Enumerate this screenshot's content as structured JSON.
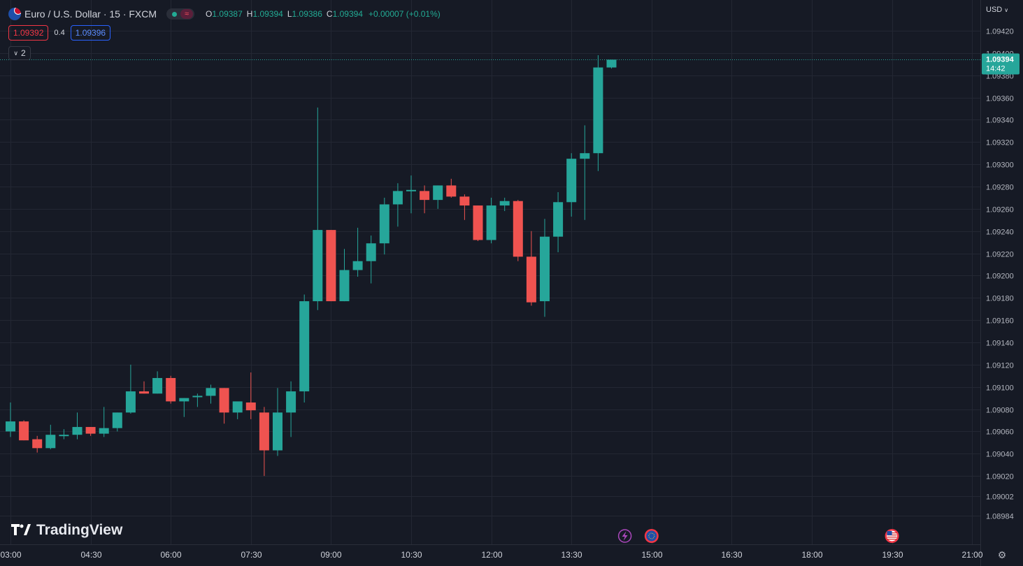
{
  "header": {
    "symbol": "Euro / U.S. Dollar · 15 · FXCM",
    "ohlc": {
      "o_label": "O",
      "o": "1.09387",
      "h_label": "H",
      "h": "1.09394",
      "l_label": "L",
      "l": "1.09386",
      "c_label": "C",
      "c": "1.09394",
      "change": "+0.00007 (+0.01%)"
    },
    "market_status": "open",
    "icons": {
      "flag": "eur-usd-flag-icon",
      "status": "market-open-dot-icon",
      "wave": "wave-icon"
    }
  },
  "quotes": {
    "sell": "1.09392",
    "spread": "0.4",
    "buy": "1.09396"
  },
  "indicators_toggle": {
    "count": "2"
  },
  "price_axis": {
    "currency": "USD"
  },
  "last_price": {
    "price": "1.09394",
    "countdown": "14:42",
    "color": "#26a69a"
  },
  "branding": {
    "name": "TradingView"
  },
  "events": [
    {
      "time": "14:30",
      "icon": "lightning-event-icon"
    },
    {
      "time": "15:00",
      "icon": "eu-flag-event-icon"
    },
    {
      "time": "19:30",
      "icon": "us-flag-event-icon"
    }
  ],
  "colors": {
    "background": "#161a25",
    "up": "#26a69a",
    "down": "#ef5350",
    "grid": "#232733",
    "axis_text": "#b2b5be"
  },
  "chart_data": {
    "type": "candlestick",
    "interval": "15",
    "x_ticks": [
      "03:00",
      "04:30",
      "06:00",
      "07:30",
      "09:00",
      "10:30",
      "12:00",
      "13:30",
      "15:00",
      "16:30",
      "18:00",
      "19:30",
      "21:00"
    ],
    "y_ticks": [
      "1.09420",
      "1.09400",
      "1.09380",
      "1.09360",
      "1.09340",
      "1.09320",
      "1.09300",
      "1.09280",
      "1.09260",
      "1.09240",
      "1.09220",
      "1.09200",
      "1.09180",
      "1.09160",
      "1.09140",
      "1.09120",
      "1.09100",
      "1.09080",
      "1.09060",
      "1.09040",
      "1.09020",
      "1.09002",
      "1.08984"
    ],
    "ylim": [
      1.08984,
      1.0943
    ],
    "candles": [
      {
        "time": "03:00",
        "o": 1.0906,
        "h": 1.09086,
        "l": 1.09055,
        "c": 1.09069
      },
      {
        "time": "03:15",
        "o": 1.09069,
        "h": 1.0907,
        "l": 1.09052,
        "c": 1.09052
      },
      {
        "time": "03:30",
        "o": 1.09053,
        "h": 1.09056,
        "l": 1.09041,
        "c": 1.09045
      },
      {
        "time": "03:45",
        "o": 1.09045,
        "h": 1.09066,
        "l": 1.09044,
        "c": 1.09057
      },
      {
        "time": "04:00",
        "o": 1.09057,
        "h": 1.09062,
        "l": 1.09053,
        "c": 1.09057
      },
      {
        "time": "04:15",
        "o": 1.09057,
        "h": 1.09077,
        "l": 1.09053,
        "c": 1.09064
      },
      {
        "time": "04:30",
        "o": 1.09064,
        "h": 1.09064,
        "l": 1.09056,
        "c": 1.09058
      },
      {
        "time": "04:45",
        "o": 1.09058,
        "h": 1.09082,
        "l": 1.09055,
        "c": 1.09063
      },
      {
        "time": "05:00",
        "o": 1.09063,
        "h": 1.09077,
        "l": 1.0906,
        "c": 1.09077
      },
      {
        "time": "05:15",
        "o": 1.09077,
        "h": 1.0912,
        "l": 1.09076,
        "c": 1.09096
      },
      {
        "time": "05:30",
        "o": 1.09096,
        "h": 1.09105,
        "l": 1.09094,
        "c": 1.09094
      },
      {
        "time": "05:45",
        "o": 1.09094,
        "h": 1.09114,
        "l": 1.09094,
        "c": 1.09108
      },
      {
        "time": "06:00",
        "o": 1.09108,
        "h": 1.0911,
        "l": 1.09085,
        "c": 1.09087
      },
      {
        "time": "06:15",
        "o": 1.09087,
        "h": 1.0909,
        "l": 1.09073,
        "c": 1.0909
      },
      {
        "time": "06:30",
        "o": 1.09091,
        "h": 1.09094,
        "l": 1.09082,
        "c": 1.09092
      },
      {
        "time": "06:45",
        "o": 1.09092,
        "h": 1.09102,
        "l": 1.09085,
        "c": 1.09099
      },
      {
        "time": "07:00",
        "o": 1.09099,
        "h": 1.09099,
        "l": 1.09067,
        "c": 1.09077
      },
      {
        "time": "07:15",
        "o": 1.09077,
        "h": 1.09085,
        "l": 1.09071,
        "c": 1.09087
      },
      {
        "time": "07:30",
        "o": 1.09086,
        "h": 1.09113,
        "l": 1.09071,
        "c": 1.09079
      },
      {
        "time": "07:45",
        "o": 1.09077,
        "h": 1.09082,
        "l": 1.0902,
        "c": 1.09043
      },
      {
        "time": "08:00",
        "o": 1.09043,
        "h": 1.09099,
        "l": 1.09038,
        "c": 1.09077
      },
      {
        "time": "08:15",
        "o": 1.09077,
        "h": 1.09105,
        "l": 1.09055,
        "c": 1.09096
      },
      {
        "time": "08:30",
        "o": 1.09096,
        "h": 1.09183,
        "l": 1.09086,
        "c": 1.09177
      },
      {
        "time": "08:45",
        "o": 1.09177,
        "h": 1.09351,
        "l": 1.09169,
        "c": 1.09241
      },
      {
        "time": "09:00",
        "o": 1.09241,
        "h": 1.09241,
        "l": 1.09177,
        "c": 1.09177
      },
      {
        "time": "09:15",
        "o": 1.09177,
        "h": 1.09224,
        "l": 1.09177,
        "c": 1.09205
      },
      {
        "time": "09:30",
        "o": 1.09205,
        "h": 1.09243,
        "l": 1.09199,
        "c": 1.09213
      },
      {
        "time": "09:45",
        "o": 1.09213,
        "h": 1.09236,
        "l": 1.09193,
        "c": 1.09229
      },
      {
        "time": "10:00",
        "o": 1.09229,
        "h": 1.0927,
        "l": 1.09219,
        "c": 1.09264
      },
      {
        "time": "10:15",
        "o": 1.09264,
        "h": 1.09283,
        "l": 1.09244,
        "c": 1.09276
      },
      {
        "time": "10:30",
        "o": 1.09276,
        "h": 1.0929,
        "l": 1.09256,
        "c": 1.09277
      },
      {
        "time": "10:45",
        "o": 1.09276,
        "h": 1.09281,
        "l": 1.09256,
        "c": 1.09268
      },
      {
        "time": "11:00",
        "o": 1.09268,
        "h": 1.09281,
        "l": 1.0926,
        "c": 1.09281
      },
      {
        "time": "11:15",
        "o": 1.09281,
        "h": 1.09287,
        "l": 1.0927,
        "c": 1.09271
      },
      {
        "time": "11:30",
        "o": 1.09271,
        "h": 1.09273,
        "l": 1.0925,
        "c": 1.09263
      },
      {
        "time": "11:45",
        "o": 1.09263,
        "h": 1.09263,
        "l": 1.09231,
        "c": 1.09232
      },
      {
        "time": "12:00",
        "o": 1.09232,
        "h": 1.0927,
        "l": 1.09229,
        "c": 1.09263
      },
      {
        "time": "12:15",
        "o": 1.09263,
        "h": 1.0927,
        "l": 1.09258,
        "c": 1.09267
      },
      {
        "time": "12:30",
        "o": 1.09267,
        "h": 1.09268,
        "l": 1.09213,
        "c": 1.09217
      },
      {
        "time": "12:45",
        "o": 1.09217,
        "h": 1.0924,
        "l": 1.09173,
        "c": 1.09176
      },
      {
        "time": "13:00",
        "o": 1.09177,
        "h": 1.09251,
        "l": 1.09163,
        "c": 1.09235
      },
      {
        "time": "13:15",
        "o": 1.09235,
        "h": 1.09275,
        "l": 1.09221,
        "c": 1.09266
      },
      {
        "time": "13:30",
        "o": 1.09266,
        "h": 1.0931,
        "l": 1.09253,
        "c": 1.09305
      },
      {
        "time": "13:45",
        "o": 1.09305,
        "h": 1.09335,
        "l": 1.0925,
        "c": 1.0931
      },
      {
        "time": "14:00",
        "o": 1.0931,
        "h": 1.09398,
        "l": 1.09294,
        "c": 1.09387
      },
      {
        "time": "14:15",
        "o": 1.09387,
        "h": 1.09394,
        "l": 1.09386,
        "c": 1.09394
      }
    ]
  }
}
